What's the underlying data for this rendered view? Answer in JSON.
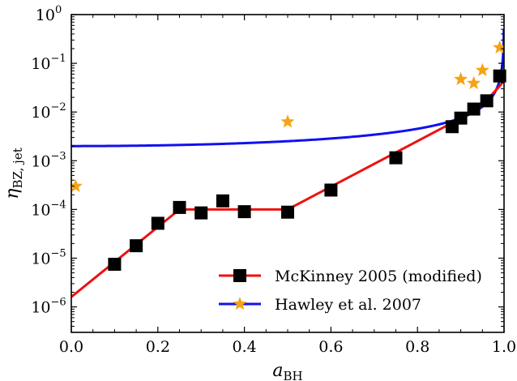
{
  "chart_data": {
    "type": "scatter",
    "title": "",
    "xlabel": "a",
    "xlabel_sub": "BH",
    "ylabel": "η",
    "ylabel_sub": "BZ, jet",
    "xlim": [
      0,
      1
    ],
    "ylim": [
      3e-07,
      1
    ],
    "yscale": "log",
    "grid": false,
    "legend_position": "bottom-right",
    "x_ticks": [
      0.0,
      0.2,
      0.4,
      0.6,
      0.8,
      1.0
    ],
    "x_tick_labels": [
      "0.0",
      "0.2",
      "0.4",
      "0.6",
      "0.8",
      "1.0"
    ],
    "y_tick_exponents": [
      "0",
      "−1",
      "−2",
      "−3",
      "−4",
      "−5",
      "−6"
    ],
    "y_tick_values": [
      1,
      0.1,
      0.01,
      0.001,
      0.0001,
      1e-05,
      1e-06
    ],
    "series": [
      {
        "name": "McKinney 2005 (modified)",
        "color": "#ee1111",
        "marker": "square",
        "marker_color": "#000000",
        "points": [
          {
            "x": 0.1,
            "y": 7.5e-06
          },
          {
            "x": 0.15,
            "y": 1.8e-05
          },
          {
            "x": 0.2,
            "y": 5.2e-05
          },
          {
            "x": 0.25,
            "y": 0.00011
          },
          {
            "x": 0.3,
            "y": 8.5e-05
          },
          {
            "x": 0.35,
            "y": 0.00015
          },
          {
            "x": 0.4,
            "y": 9e-05
          },
          {
            "x": 0.5,
            "y": 8.8e-05
          },
          {
            "x": 0.6,
            "y": 0.00025
          },
          {
            "x": 0.75,
            "y": 0.00115
          },
          {
            "x": 0.88,
            "y": 0.005
          },
          {
            "x": 0.9,
            "y": 0.0075
          },
          {
            "x": 0.93,
            "y": 0.0115
          },
          {
            "x": 0.96,
            "y": 0.017
          },
          {
            "x": 0.99,
            "y": 0.055
          }
        ],
        "line": [
          {
            "x": 0.0,
            "y": 1.6e-06
          },
          {
            "x": 0.25,
            "y": 0.0001
          },
          {
            "x": 0.5,
            "y": 0.0001
          },
          {
            "x": 0.88,
            "y": 0.006
          },
          {
            "x": 0.92,
            "y": 0.01
          },
          {
            "x": 0.95,
            "y": 0.016
          },
          {
            "x": 0.97,
            "y": 0.022
          },
          {
            "x": 0.99,
            "y": 0.034
          },
          {
            "x": 1.0,
            "y": 0.045
          }
        ]
      },
      {
        "name": "Hawley et al. 2007",
        "color": "#1111ee",
        "marker": "star",
        "marker_color": "#f5a316",
        "points": [
          {
            "x": 0.01,
            "y": 0.0003
          },
          {
            "x": 0.5,
            "y": 0.0063
          },
          {
            "x": 0.9,
            "y": 0.047
          },
          {
            "x": 0.93,
            "y": 0.039
          },
          {
            "x": 0.95,
            "y": 0.072
          },
          {
            "x": 0.99,
            "y": 0.21
          }
        ],
        "curve": {
          "formula": "2e-3 / (1 - a^2)^0.8",
          "x_range": [
            0,
            0.9995
          ]
        }
      }
    ]
  }
}
